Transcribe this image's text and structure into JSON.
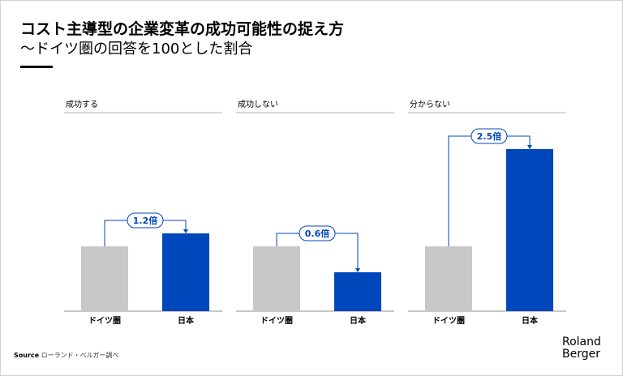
{
  "title": "コスト主導型の企業変革の成功可能性の捉え方",
  "subtitle": "〜ドイツ圏の回答を100とした割合",
  "source_label": "Source",
  "source_text": "ローランド・ベルガー調べ",
  "logo": [
    "Roland",
    "Berger"
  ],
  "colors": {
    "germany": "#c8c8c8",
    "japan": "#0047bb",
    "annotation": "#0047bb"
  },
  "chart_data": [
    {
      "type": "bar",
      "title": "成功する",
      "categories": [
        "ドイツ圏",
        "日本"
      ],
      "values": [
        100,
        120
      ],
      "annotation": "1.2倍"
    },
    {
      "type": "bar",
      "title": "成功しない",
      "categories": [
        "ドイツ圏",
        "日本"
      ],
      "values": [
        100,
        60
      ],
      "annotation": "0.6倍"
    },
    {
      "type": "bar",
      "title": "分からない",
      "categories": [
        "ドイツ圏",
        "日本"
      ],
      "values": [
        100,
        250
      ],
      "annotation": "2.5倍"
    }
  ]
}
